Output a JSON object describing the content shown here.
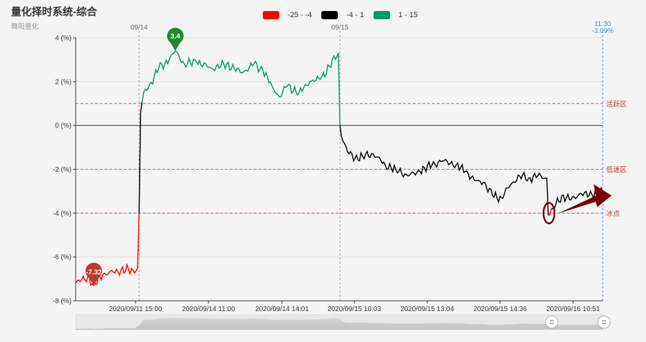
{
  "title": "量化择时系统-综合",
  "subtitle": "舞阳量化",
  "chart_data": {
    "type": "line",
    "legend": [
      {
        "label": "-25 - -4",
        "color": "#ff0000"
      },
      {
        "label": "-4 - 1",
        "color": "#000000"
      },
      {
        "label": "1 - 15",
        "color": "#009966"
      }
    ],
    "yticks": [
      "4 (%)",
      "2 (%)",
      "0 (%)",
      "-2 (%)",
      "-4 (%)",
      "-6 (%)",
      "-8 (%)"
    ],
    "ylim": [
      -8,
      4
    ],
    "xticks": [
      "2020/09/11 15:00",
      "2020/09/14 11:00",
      "2020/09/14 14:01",
      "2020/09/15 10:03",
      "2020/09/15 13:04",
      "2020/09/15 14:36",
      "2020/09/16 10:51"
    ],
    "day_markers": [
      {
        "label": "09/14",
        "index": 42
      },
      {
        "label": "09/15",
        "index": 175
      }
    ],
    "zones": [
      {
        "label": "活跃区",
        "value": 1
      },
      {
        "label": "低迷区",
        "value": -2
      },
      {
        "label": "冰点",
        "value": -4
      }
    ],
    "current": {
      "time": "11:30",
      "value": "-3.09%"
    },
    "max_marker": {
      "label": "3.4",
      "value": 3.4
    },
    "min_marker": {
      "label": "-7.32",
      "value": -7.32
    },
    "points_count": 350,
    "series_anchors": [
      [
        0,
        -7.2
      ],
      [
        8,
        -6.9
      ],
      [
        12,
        -7.3
      ],
      [
        18,
        -6.8
      ],
      [
        25,
        -6.7
      ],
      [
        30,
        -6.6
      ],
      [
        38,
        -6.6
      ],
      [
        41,
        -6.5
      ],
      [
        42,
        -4.0
      ],
      [
        43,
        0.6
      ],
      [
        45,
        1.5
      ],
      [
        48,
        1.7
      ],
      [
        55,
        2.6
      ],
      [
        62,
        3.0
      ],
      [
        66,
        3.4
      ],
      [
        72,
        2.8
      ],
      [
        80,
        2.9
      ],
      [
        90,
        2.6
      ],
      [
        100,
        2.8
      ],
      [
        110,
        2.4
      ],
      [
        118,
        2.8
      ],
      [
        124,
        2.5
      ],
      [
        130,
        1.8
      ],
      [
        135,
        1.3
      ],
      [
        140,
        1.8
      ],
      [
        148,
        1.5
      ],
      [
        155,
        2.0
      ],
      [
        162,
        2.1
      ],
      [
        168,
        2.7
      ],
      [
        174,
        3.3
      ],
      [
        175,
        0.0
      ],
      [
        176,
        -0.5
      ],
      [
        180,
        -1.2
      ],
      [
        185,
        -1.5
      ],
      [
        190,
        -1.4
      ],
      [
        197,
        -1.3
      ],
      [
        205,
        -1.8
      ],
      [
        212,
        -2.0
      ],
      [
        220,
        -2.3
      ],
      [
        228,
        -2.1
      ],
      [
        236,
        -1.8
      ],
      [
        244,
        -1.6
      ],
      [
        252,
        -1.8
      ],
      [
        258,
        -2.1
      ],
      [
        264,
        -2.5
      ],
      [
        270,
        -2.6
      ],
      [
        276,
        -3.2
      ],
      [
        282,
        -3.3
      ],
      [
        288,
        -2.7
      ],
      [
        294,
        -2.3
      ],
      [
        300,
        -2.4
      ],
      [
        306,
        -2.3
      ],
      [
        312,
        -2.4
      ],
      [
        313,
        -4.1
      ],
      [
        316,
        -3.8
      ],
      [
        322,
        -3.2
      ],
      [
        328,
        -3.4
      ],
      [
        334,
        -3.1
      ],
      [
        340,
        -3.2
      ],
      [
        345,
        -3.0
      ],
      [
        349,
        -3.09
      ]
    ]
  }
}
